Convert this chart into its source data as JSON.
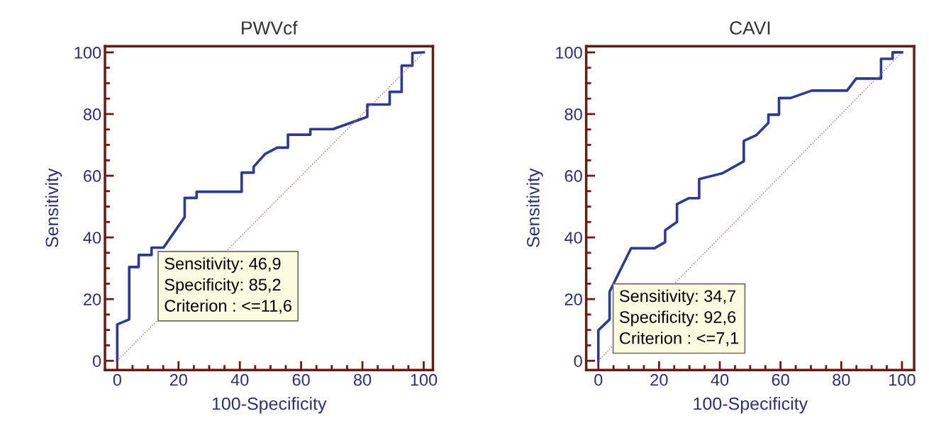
{
  "chart_data": [
    {
      "type": "line",
      "title": "PWVcf",
      "xlabel": "100-Specificity",
      "ylabel": "Sensitivity",
      "xlim": [
        -4,
        103
      ],
      "ylim": [
        -3,
        102
      ],
      "xticks": [
        0,
        20,
        40,
        60,
        80,
        100
      ],
      "yticks": [
        0,
        20,
        40,
        60,
        80,
        100
      ],
      "grid": false,
      "legend": false,
      "marker": "none",
      "series": [
        {
          "color": "#2b3a9a",
          "line_style": "solid",
          "x": [
            0,
            0,
            3.9,
            3.9,
            7,
            7,
            11.2,
            11.2,
            15.1,
            22,
            22,
            25.9,
            25.9,
            40.6,
            40.6,
            44.5,
            44.5,
            48.3,
            52.2,
            55.7,
            55.7,
            63,
            63,
            70.4,
            81.6,
            81.6,
            88.9,
            88.9,
            92.8,
            92.8,
            96.3,
            96.3,
            100
          ],
          "values": [
            0,
            11.8,
            13.4,
            30.4,
            30.4,
            34.3,
            34.3,
            36.7,
            36.7,
            46.6,
            52.8,
            52.8,
            54.8,
            54.8,
            61,
            61,
            62.9,
            67.1,
            69.1,
            69.1,
            73.3,
            73.3,
            75.1,
            75.1,
            79.1,
            83.1,
            83.1,
            87.2,
            87.2,
            95.7,
            95.7,
            99.8,
            100
          ]
        },
        {
          "color": "#a86a6a",
          "line_style": "dotted",
          "x": [
            0,
            100
          ],
          "values": [
            0,
            100
          ]
        }
      ],
      "annotations": [
        "Sensitivity: 46,9\nSpecificity: 85,2\nCriterion : <=11,6"
      ]
    },
    {
      "type": "line",
      "title": "CAVI",
      "xlabel": "100-Specificity",
      "ylabel": "Sensitivity",
      "xlim": [
        -4,
        104
      ],
      "ylim": [
        -3,
        102
      ],
      "xticks": [
        0,
        20,
        40,
        60,
        80,
        100
      ],
      "yticks": [
        0,
        20,
        40,
        60,
        80,
        100
      ],
      "grid": false,
      "legend": false,
      "marker": "none",
      "series": [
        {
          "color": "#2b3a9a",
          "line_style": "solid",
          "x": [
            0,
            0,
            3.7,
            3.7,
            10.8,
            18.5,
            22,
            22,
            25.9,
            25.9,
            29.7,
            33.2,
            33.2,
            40.9,
            47.9,
            47.9,
            52.1,
            56,
            56,
            59.5,
            59.5,
            63.3,
            70.3,
            81.9,
            84.9,
            93.1,
            93.1,
            96.9,
            96.9,
            100
          ],
          "values": [
            0,
            9.9,
            13.4,
            22.4,
            36.5,
            36.5,
            38.5,
            42.3,
            45,
            50.8,
            52.7,
            52.7,
            58.9,
            60.8,
            64.7,
            71.3,
            73.2,
            77.1,
            79.8,
            79.8,
            85.2,
            85.2,
            87.6,
            87.6,
            91.5,
            91.5,
            97.9,
            97.9,
            100,
            100
          ]
        },
        {
          "color": "#a86a6a",
          "line_style": "dotted",
          "x": [
            0,
            100
          ],
          "values": [
            0,
            100
          ]
        }
      ],
      "annotations": [
        "Sensitivity: 34,7\nSpecificity: 92,6\nCriterion : <=7,1"
      ]
    }
  ]
}
